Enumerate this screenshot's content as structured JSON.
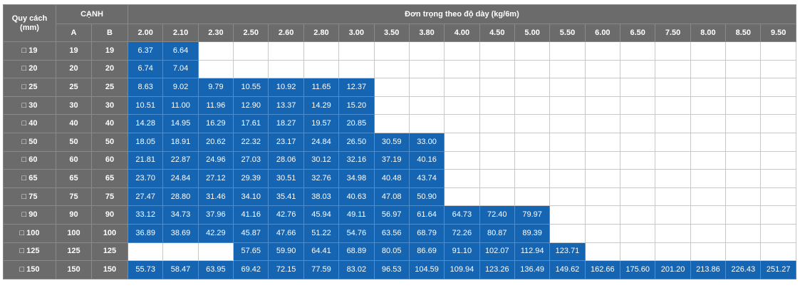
{
  "header": {
    "quy_cach": "Quy cách",
    "quy_cach_unit": "(mm)",
    "canh": "CẠNH",
    "a": "A",
    "b": "B",
    "title": "Đơn trọng theo độ dày (kg/6m)"
  },
  "thicknesses": [
    "2.00",
    "2.10",
    "2.30",
    "2.50",
    "2.60",
    "2.80",
    "3.00",
    "3.50",
    "3.80",
    "4.00",
    "4.50",
    "5.00",
    "5.50",
    "6.00",
    "6.50",
    "7.50",
    "8.00",
    "8.50",
    "9.50"
  ],
  "rows": [
    {
      "label": "□ 19",
      "a": "19",
      "b": "19",
      "values": [
        "6.37",
        "6.64",
        "",
        "",
        "",
        "",
        "",
        "",
        "",
        "",
        "",
        "",
        "",
        "",
        "",
        "",
        "",
        "",
        ""
      ]
    },
    {
      "label": "□ 20",
      "a": "20",
      "b": "20",
      "values": [
        "6.74",
        "7.04",
        "",
        "",
        "",
        "",
        "",
        "",
        "",
        "",
        "",
        "",
        "",
        "",
        "",
        "",
        "",
        "",
        ""
      ]
    },
    {
      "label": "□ 25",
      "a": "25",
      "b": "25",
      "values": [
        "8.63",
        "9.02",
        "9.79",
        "10.55",
        "10.92",
        "11.65",
        "12.37",
        "",
        "",
        "",
        "",
        "",
        "",
        "",
        "",
        "",
        "",
        "",
        ""
      ]
    },
    {
      "label": "□ 30",
      "a": "30",
      "b": "30",
      "values": [
        "10.51",
        "11.00",
        "11.96",
        "12.90",
        "13.37",
        "14.29",
        "15.20",
        "",
        "",
        "",
        "",
        "",
        "",
        "",
        "",
        "",
        "",
        "",
        ""
      ]
    },
    {
      "label": "□ 40",
      "a": "40",
      "b": "40",
      "values": [
        "14.28",
        "14.95",
        "16.29",
        "17.61",
        "18.27",
        "19.57",
        "20.85",
        "",
        "",
        "",
        "",
        "",
        "",
        "",
        "",
        "",
        "",
        "",
        ""
      ]
    },
    {
      "label": "□ 50",
      "a": "50",
      "b": "50",
      "values": [
        "18.05",
        "18.91",
        "20.62",
        "22.32",
        "23.17",
        "24.84",
        "26.50",
        "30.59",
        "33.00",
        "",
        "",
        "",
        "",
        "",
        "",
        "",
        "",
        "",
        ""
      ]
    },
    {
      "label": "□ 60",
      "a": "60",
      "b": "60",
      "values": [
        "21.81",
        "22.87",
        "24.96",
        "27.03",
        "28.06",
        "30.12",
        "32.16",
        "37.19",
        "40.16",
        "",
        "",
        "",
        "",
        "",
        "",
        "",
        "",
        "",
        ""
      ]
    },
    {
      "label": "□ 65",
      "a": "65",
      "b": "65",
      "values": [
        "23.70",
        "24.84",
        "27.12",
        "29.39",
        "30.51",
        "32.76",
        "34.98",
        "40.48",
        "43.74",
        "",
        "",
        "",
        "",
        "",
        "",
        "",
        "",
        "",
        ""
      ]
    },
    {
      "label": "□ 75",
      "a": "75",
      "b": "75",
      "values": [
        "27.47",
        "28.80",
        "31.46",
        "34.10",
        "35.41",
        "38.03",
        "40.63",
        "47.08",
        "50.90",
        "",
        "",
        "",
        "",
        "",
        "",
        "",
        "",
        "",
        ""
      ]
    },
    {
      "label": "□ 90",
      "a": "90",
      "b": "90",
      "values": [
        "33.12",
        "34.73",
        "37.96",
        "41.16",
        "42.76",
        "45.94",
        "49.11",
        "56.97",
        "61.64",
        "64.73",
        "72.40",
        "79.97",
        "",
        "",
        "",
        "",
        "",
        "",
        ""
      ]
    },
    {
      "label": "□ 100",
      "a": "100",
      "b": "100",
      "values": [
        "36.89",
        "38.69",
        "42.29",
        "45.87",
        "47.66",
        "51.22",
        "54.76",
        "63.56",
        "68.79",
        "72.26",
        "80.87",
        "89.39",
        "",
        "",
        "",
        "",
        "",
        "",
        ""
      ]
    },
    {
      "label": "□ 125",
      "a": "125",
      "b": "125",
      "values": [
        "",
        "",
        "",
        "57.65",
        "59.90",
        "64.41",
        "68.89",
        "80.05",
        "86.69",
        "91.10",
        "102.07",
        "112.94",
        "123.71",
        "",
        "",
        "",
        "",
        "",
        ""
      ]
    },
    {
      "label": "□ 150",
      "a": "150",
      "b": "150",
      "values": [
        "55.73",
        "58.47",
        "63.95",
        "69.42",
        "72.15",
        "77.59",
        "83.02",
        "96.53",
        "104.59",
        "109.94",
        "123.26",
        "136.49",
        "149.62",
        "162.66",
        "175.60",
        "201.20",
        "213.86",
        "226.43",
        "251.27"
      ]
    }
  ],
  "colors": {
    "header_bg": "#6b6b6b",
    "cell_fill": "#1565b3",
    "empty_bg": "#ffffff"
  }
}
